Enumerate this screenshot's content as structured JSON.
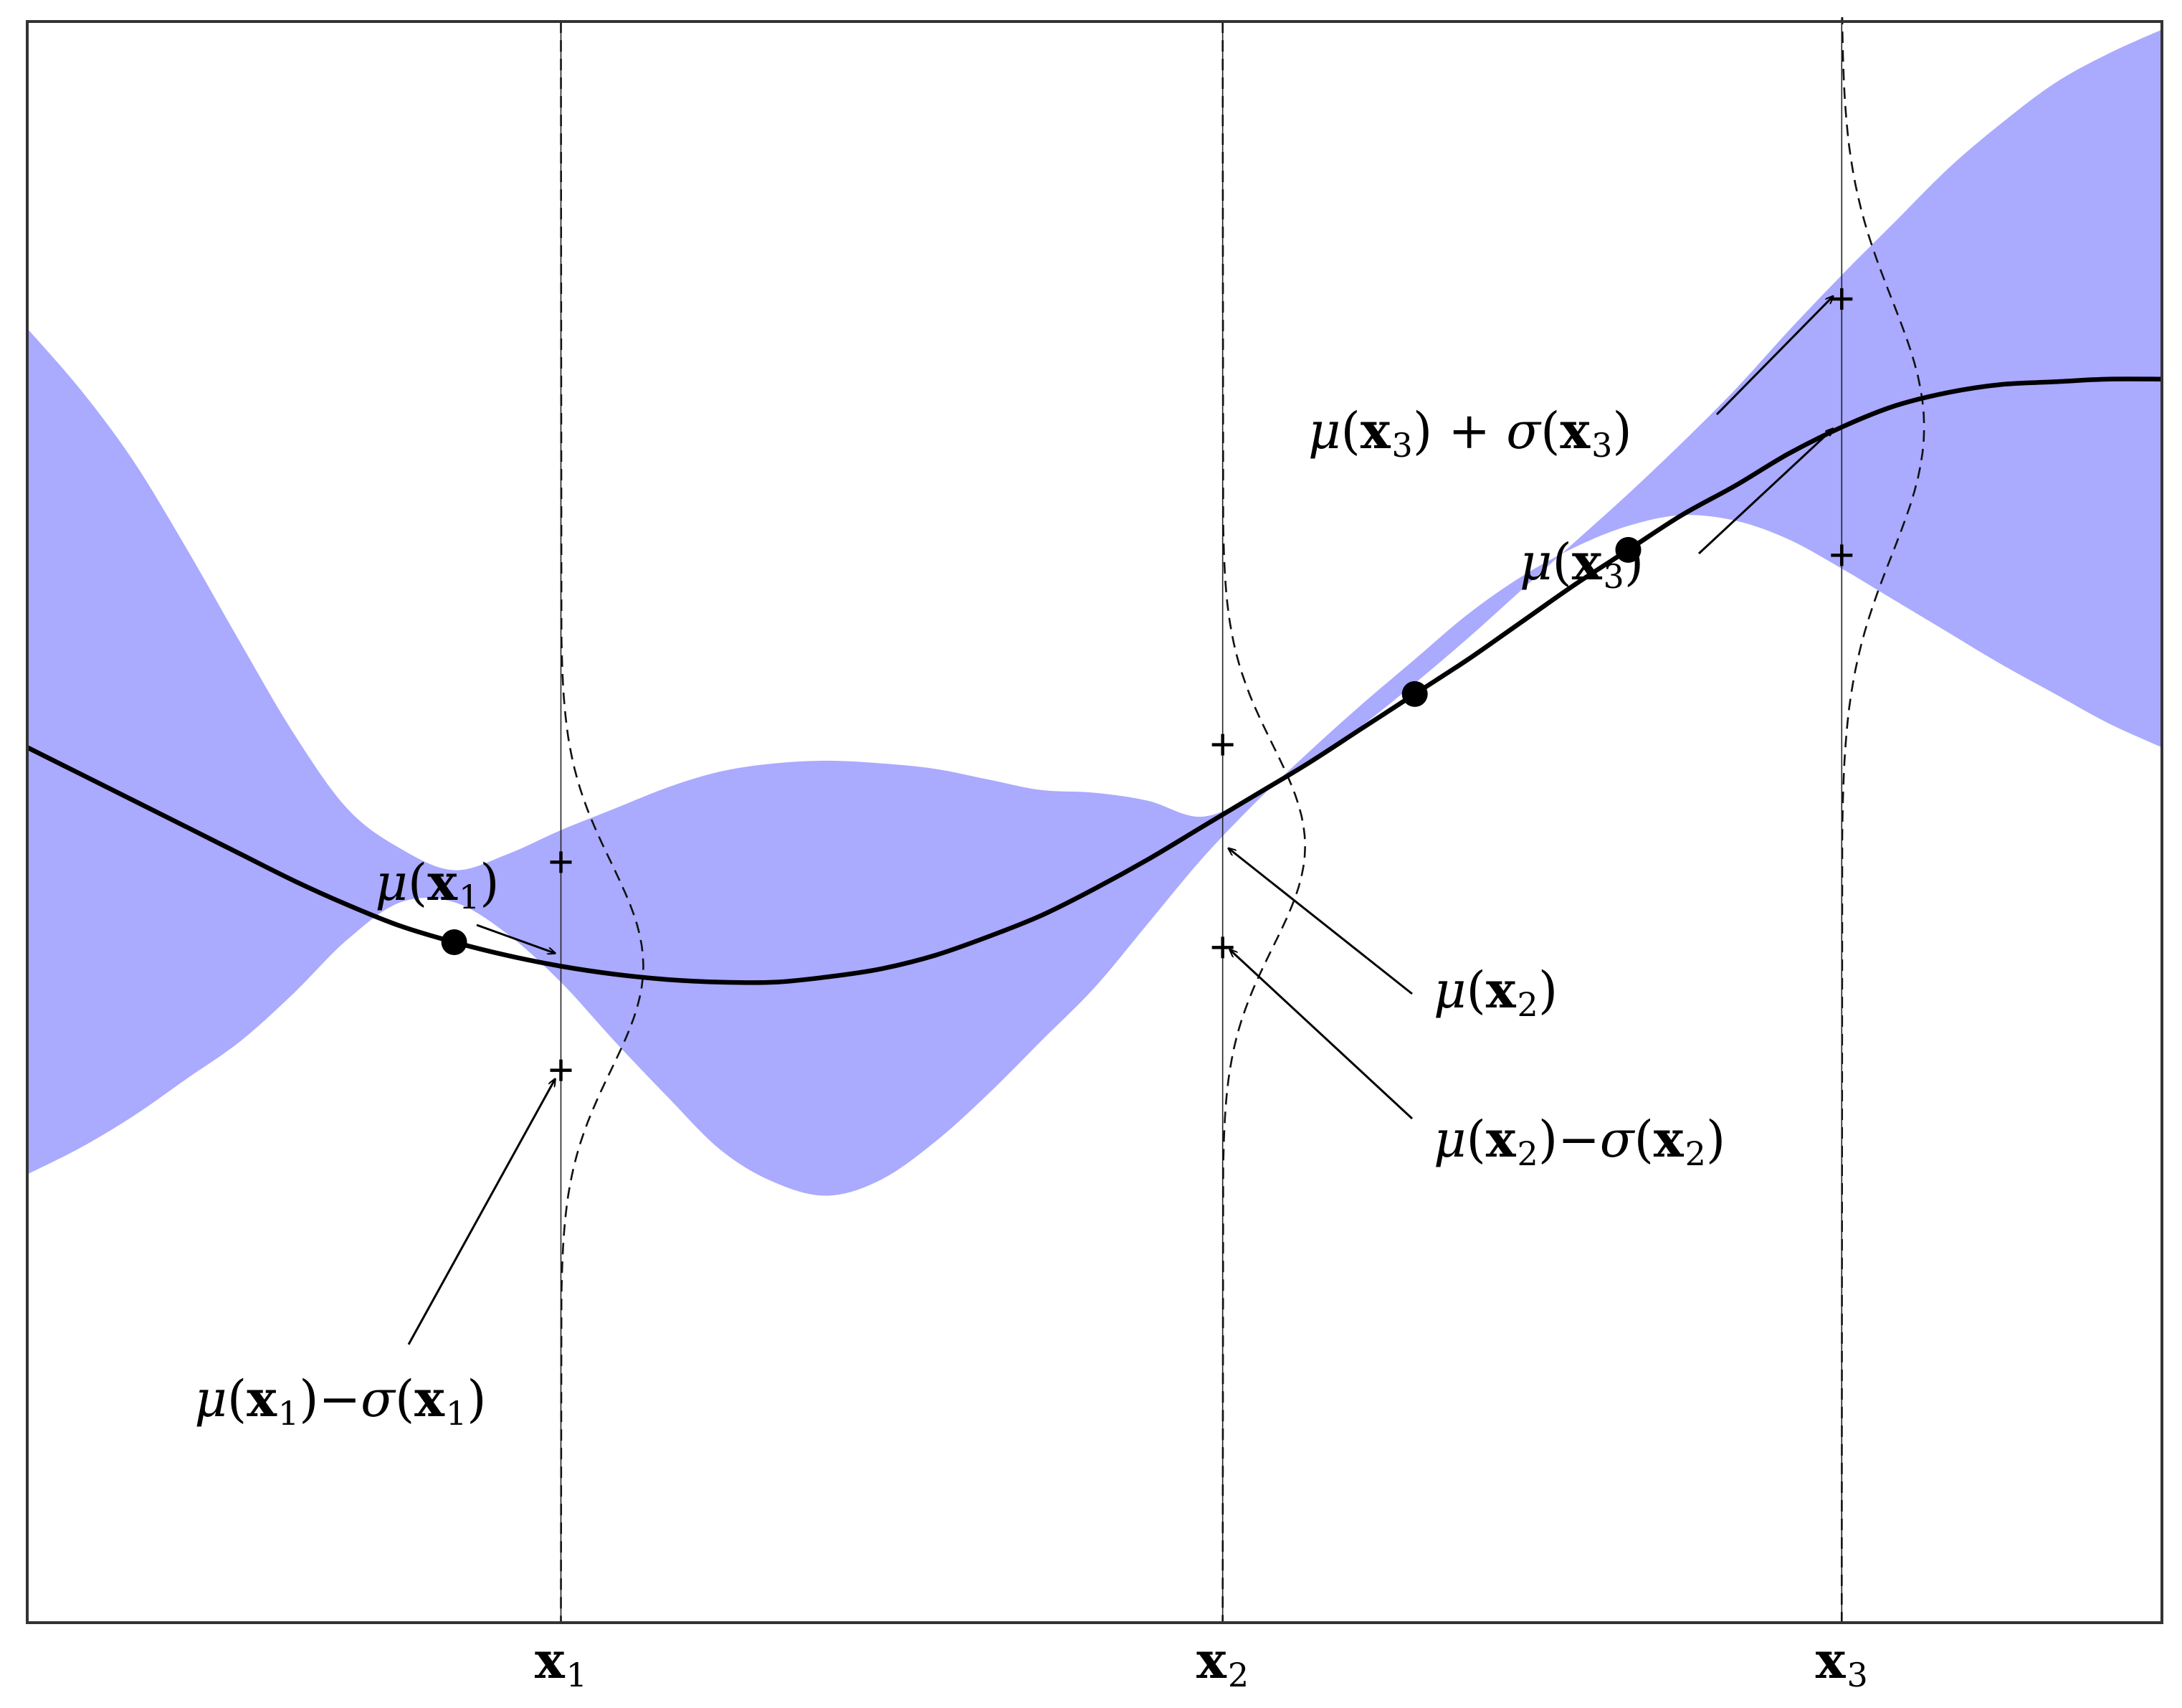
{
  "chart_data": {
    "type": "line",
    "title": "",
    "xlabel": "",
    "ylabel": "",
    "xlim": [
      0,
      10
    ],
    "ylim": [
      -3,
      3
    ],
    "grid": false,
    "colors": {
      "band": "#aaaaff",
      "mean": "#000000",
      "frame": "#333333"
    },
    "x": [
      0,
      0.25,
      0.5,
      0.75,
      1,
      1.25,
      1.5,
      1.75,
      2,
      2.25,
      2.5,
      2.75,
      3,
      3.25,
      3.5,
      3.75,
      4,
      4.25,
      4.5,
      4.75,
      5,
      5.25,
      5.5,
      5.75,
      6,
      6.25,
      6.5,
      6.75,
      7,
      7.25,
      7.5,
      7.75,
      8,
      8.25,
      8.5,
      8.75,
      9,
      9.25,
      9.5,
      9.75,
      10
    ],
    "series": [
      {
        "role": "mean",
        "values": [
          0.28,
          0.18,
          0.08,
          -0.02,
          -0.12,
          -0.22,
          -0.31,
          -0.39,
          -0.45,
          -0.5,
          -0.54,
          -0.57,
          -0.59,
          -0.6,
          -0.6,
          -0.58,
          -0.55,
          -0.5,
          -0.43,
          -0.35,
          -0.25,
          -0.14,
          -0.02,
          0.1,
          0.22,
          0.35,
          0.48,
          0.61,
          0.75,
          0.89,
          1.02,
          1.15,
          1.26,
          1.38,
          1.48,
          1.56,
          1.61,
          1.64,
          1.65,
          1.66,
          1.66
        ]
      },
      {
        "role": "upper",
        "values": [
          1.85,
          1.62,
          1.35,
          1.02,
          0.67,
          0.33,
          0.05,
          -0.1,
          -0.18,
          -0.12,
          -0.03,
          0.05,
          0.13,
          0.19,
          0.22,
          0.23,
          0.22,
          0.2,
          0.16,
          0.12,
          0.11,
          0.08,
          0.02,
          0.1,
          0.22,
          0.36,
          0.52,
          0.69,
          0.87,
          1.05,
          1.23,
          1.42,
          1.62,
          1.84,
          2.05,
          2.25,
          2.45,
          2.62,
          2.77,
          2.88,
          2.97
        ]
      },
      {
        "role": "lower",
        "values": [
          -1.32,
          -1.22,
          -1.1,
          -0.96,
          -0.82,
          -0.64,
          -0.44,
          -0.3,
          -0.3,
          -0.42,
          -0.6,
          -0.82,
          -1.03,
          -1.23,
          -1.35,
          -1.4,
          -1.34,
          -1.2,
          -1.02,
          -0.82,
          -0.62,
          -0.38,
          -0.14,
          0.07,
          0.26,
          0.44,
          0.61,
          0.78,
          0.92,
          1.03,
          1.11,
          1.15,
          1.13,
          1.06,
          0.95,
          0.83,
          0.71,
          0.59,
          0.48,
          0.37,
          0.28
        ]
      }
    ],
    "observations": {
      "x": [
        2.0,
        6.5,
        7.5
      ],
      "y": [
        -0.45,
        0.48,
        1.02
      ]
    },
    "test_points": [
      {
        "x": 2.5,
        "tick": "x",
        "sub": "1",
        "mu": -0.54,
        "sigma": 0.39
      },
      {
        "x": 5.6,
        "tick": "x",
        "sub": "2",
        "mu": -0.09,
        "sigma": 0.38
      },
      {
        "x": 8.5,
        "tick": "x",
        "sub": "3",
        "mu": 1.48,
        "sigma": 0.48
      }
    ],
    "annotations": [
      {
        "target": "mu1",
        "tokens": [
          [
            "μ",
            "math"
          ],
          [
            "(",
            "roman"
          ],
          [
            "x",
            "bold"
          ],
          [
            "1",
            "sub"
          ],
          [
            ")",
            "roman"
          ]
        ]
      },
      {
        "target": "mu1_minus_sigma1",
        "tokens": [
          [
            "μ",
            "math"
          ],
          [
            "(",
            "roman"
          ],
          [
            "x",
            "bold"
          ],
          [
            "1",
            "sub"
          ],
          [
            ")−",
            "roman"
          ],
          [
            "σ",
            "math"
          ],
          [
            "(",
            "roman"
          ],
          [
            "x",
            "bold"
          ],
          [
            "1",
            "sub"
          ],
          [
            ")",
            "roman"
          ]
        ]
      },
      {
        "target": "mu2",
        "tokens": [
          [
            "μ",
            "math"
          ],
          [
            "(",
            "roman"
          ],
          [
            "x",
            "bold"
          ],
          [
            "2",
            "sub"
          ],
          [
            ")",
            "roman"
          ]
        ]
      },
      {
        "target": "mu2_minus_sigma2",
        "tokens": [
          [
            "μ",
            "math"
          ],
          [
            "(",
            "roman"
          ],
          [
            "x",
            "bold"
          ],
          [
            "2",
            "sub"
          ],
          [
            ")−",
            "roman"
          ],
          [
            "σ",
            "math"
          ],
          [
            "(",
            "roman"
          ],
          [
            "x",
            "bold"
          ],
          [
            "2",
            "sub"
          ],
          [
            ")",
            "roman"
          ]
        ]
      },
      {
        "target": "mu3",
        "tokens": [
          [
            "μ",
            "math"
          ],
          [
            "(",
            "roman"
          ],
          [
            "x",
            "bold"
          ],
          [
            "3",
            "sub"
          ],
          [
            ")",
            "roman"
          ]
        ]
      },
      {
        "target": "mu3_plus_sigma3",
        "tokens": [
          [
            "μ",
            "math"
          ],
          [
            "(",
            "roman"
          ],
          [
            "x",
            "bold"
          ],
          [
            "3",
            "sub"
          ],
          [
            ") + ",
            "roman"
          ],
          [
            "σ",
            "math"
          ],
          [
            "(",
            "roman"
          ],
          [
            "x",
            "bold"
          ],
          [
            "3",
            "sub"
          ],
          [
            ")",
            "roman"
          ]
        ]
      }
    ]
  }
}
